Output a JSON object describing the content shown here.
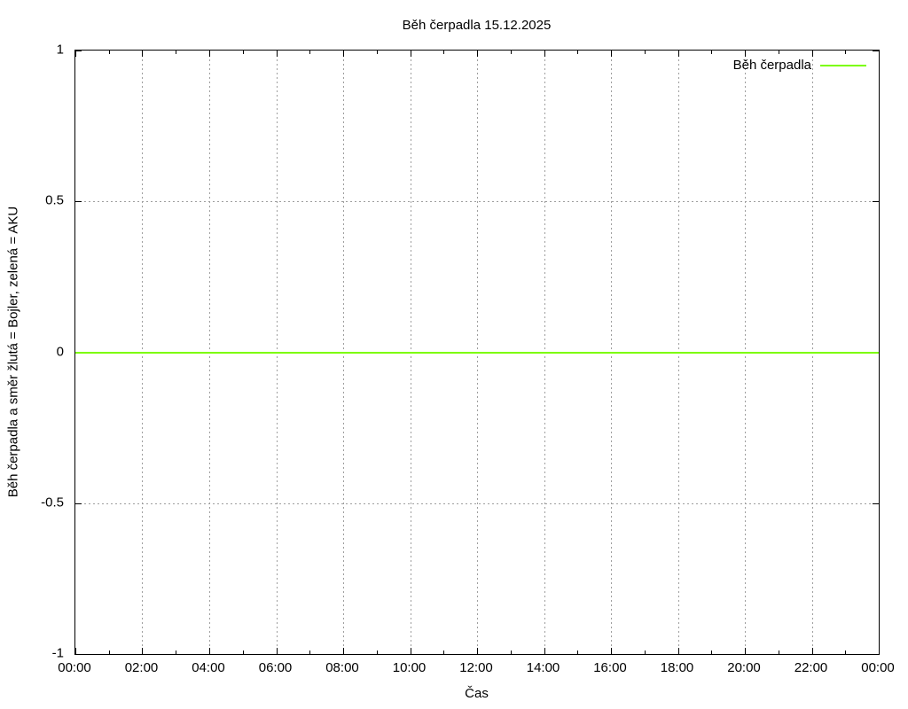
{
  "chart_data": {
    "type": "line",
    "title": "Běh čerpadla 15.12.2025",
    "xlabel": "Čas",
    "ylabel": "Běh čerpadla a směr žlutá = Bojler, zelená = AKU",
    "x_tick_labels": [
      "00:00",
      "02:00",
      "04:00",
      "06:00",
      "08:00",
      "10:00",
      "12:00",
      "14:00",
      "16:00",
      "18:00",
      "20:00",
      "22:00",
      "00:00"
    ],
    "x_minor_ticks_between_majors": 1,
    "y_ticks": [
      1,
      0.5,
      0,
      -0.5,
      -1
    ],
    "y_tick_labels": [
      "1",
      "0.5",
      "0",
      "-0.5",
      "-1"
    ],
    "ylim": [
      -1,
      1
    ],
    "grid": true,
    "legend_position": "top-right",
    "series": [
      {
        "name": "Běh čerpadla",
        "color": "#7cfc00",
        "x": [
          "00:00",
          "24:00"
        ],
        "values": [
          0,
          0
        ]
      }
    ],
    "colors": {
      "background": "#ffffff",
      "axis": "#000000",
      "text": "#000000",
      "grid": "#9e9e9e",
      "series_green": "#7cfc00"
    }
  }
}
